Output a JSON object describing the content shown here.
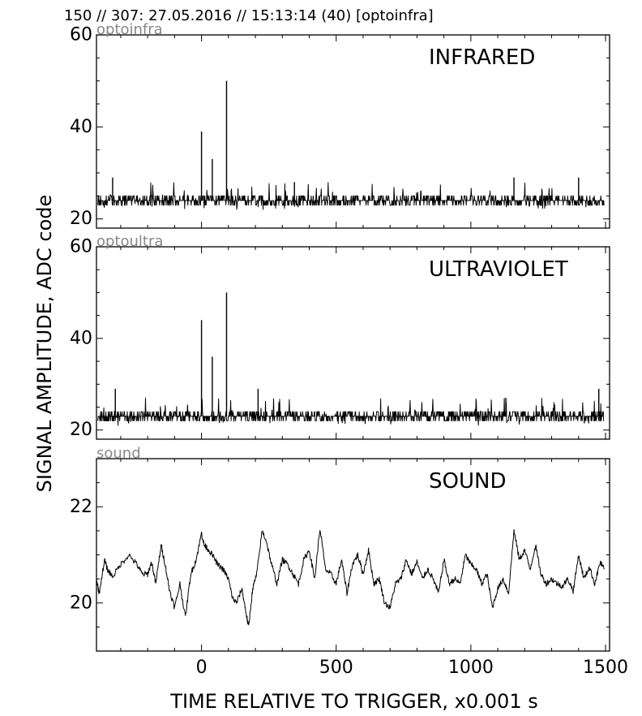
{
  "header": "150 // 307:   27.05.2016 // 15:13:14 (40)  [optoinfra]",
  "ylabel": "SIGNAL AMPLITUDE,  ADC code",
  "xlabel": "TIME RELATIVE TO TRIGGER,   x0.001 s",
  "x_tick_labels": [
    "0",
    "500",
    "1000",
    "1500"
  ],
  "chart_data": [
    {
      "type": "line",
      "title": "INFRARED",
      "data_label": "optoinfra",
      "xlim": [
        -390,
        1515
      ],
      "ylim": [
        18,
        60
      ],
      "yticks": [
        20,
        40,
        60
      ],
      "y_tick_labels": [
        "20",
        "40",
        "60"
      ],
      "baseline": 24,
      "noise_range": [
        22,
        26
      ],
      "spikes": [
        {
          "x": 0,
          "y": 39
        },
        {
          "x": 40,
          "y": 33
        },
        {
          "x": 93,
          "y": 50
        },
        {
          "x": 345,
          "y": 28
        },
        {
          "x": -330,
          "y": 29
        },
        {
          "x": 1160,
          "y": 29
        },
        {
          "x": 1400,
          "y": 29
        }
      ]
    },
    {
      "type": "line",
      "title": "ULTRAVIOLET",
      "data_label": "optoultra",
      "xlim": [
        -390,
        1515
      ],
      "ylim": [
        18,
        60
      ],
      "yticks": [
        20,
        40,
        60
      ],
      "y_tick_labels": [
        "20",
        "40",
        "60"
      ],
      "baseline": 23,
      "noise_range": [
        21,
        25
      ],
      "spikes": [
        {
          "x": 0,
          "y": 44
        },
        {
          "x": 40,
          "y": 36
        },
        {
          "x": 93,
          "y": 50
        },
        {
          "x": 210,
          "y": 29
        },
        {
          "x": -320,
          "y": 29
        },
        {
          "x": 1130,
          "y": 27
        },
        {
          "x": 1475,
          "y": 29
        }
      ]
    },
    {
      "type": "line",
      "title": "SOUND",
      "data_label": "sound",
      "xlim": [
        -390,
        1515
      ],
      "ylim": [
        19,
        23
      ],
      "yticks": [
        20,
        22
      ],
      "y_tick_labels": [
        "20",
        "22"
      ],
      "x": [
        -390,
        -380,
        -360,
        -350,
        -330,
        -300,
        -270,
        -240,
        -220,
        -200,
        -185,
        -170,
        -150,
        -135,
        -120,
        -100,
        -80,
        -60,
        -40,
        -20,
        0,
        10,
        20,
        40,
        60,
        80,
        100,
        115,
        130,
        150,
        165,
        175,
        190,
        205,
        225,
        240,
        260,
        280,
        300,
        320,
        340,
        360,
        380,
        400,
        420,
        440,
        460,
        480,
        500,
        520,
        540,
        560,
        580,
        600,
        620,
        640,
        660,
        680,
        700,
        720,
        740,
        760,
        780,
        800,
        820,
        840,
        860,
        880,
        900,
        920,
        940,
        960,
        980,
        1000,
        1020,
        1040,
        1060,
        1080,
        1100,
        1120,
        1140,
        1160,
        1180,
        1200,
        1220,
        1240,
        1260,
        1280,
        1300,
        1320,
        1340,
        1360,
        1380,
        1400,
        1420,
        1440,
        1460,
        1480,
        1495
      ],
      "values": [
        20.5,
        20.2,
        20.9,
        20.7,
        20.55,
        20.8,
        21.0,
        20.8,
        20.6,
        20.6,
        20.85,
        20.4,
        21.2,
        20.8,
        20.3,
        19.9,
        20.4,
        19.7,
        20.6,
        20.9,
        21.45,
        21.2,
        21.15,
        21.0,
        20.8,
        20.7,
        20.5,
        20.1,
        20.0,
        20.3,
        19.8,
        19.5,
        20.3,
        20.6,
        21.5,
        21.3,
        20.8,
        20.4,
        20.9,
        20.8,
        20.6,
        20.4,
        20.9,
        21.1,
        20.5,
        21.55,
        20.7,
        20.6,
        20.4,
        20.9,
        20.2,
        20.8,
        21.0,
        20.6,
        21.1,
        20.4,
        20.5,
        20.0,
        19.9,
        20.4,
        20.5,
        20.9,
        20.6,
        20.85,
        20.5,
        20.7,
        20.5,
        20.2,
        20.9,
        20.4,
        20.5,
        20.4,
        21.0,
        20.8,
        20.7,
        20.4,
        20.6,
        19.9,
        20.3,
        20.5,
        20.2,
        21.5,
        20.9,
        21.1,
        20.7,
        21.2,
        20.6,
        20.4,
        20.5,
        20.4,
        20.35,
        20.5,
        20.25,
        21.0,
        20.5,
        20.75,
        20.4,
        20.85,
        20.7
      ]
    }
  ]
}
